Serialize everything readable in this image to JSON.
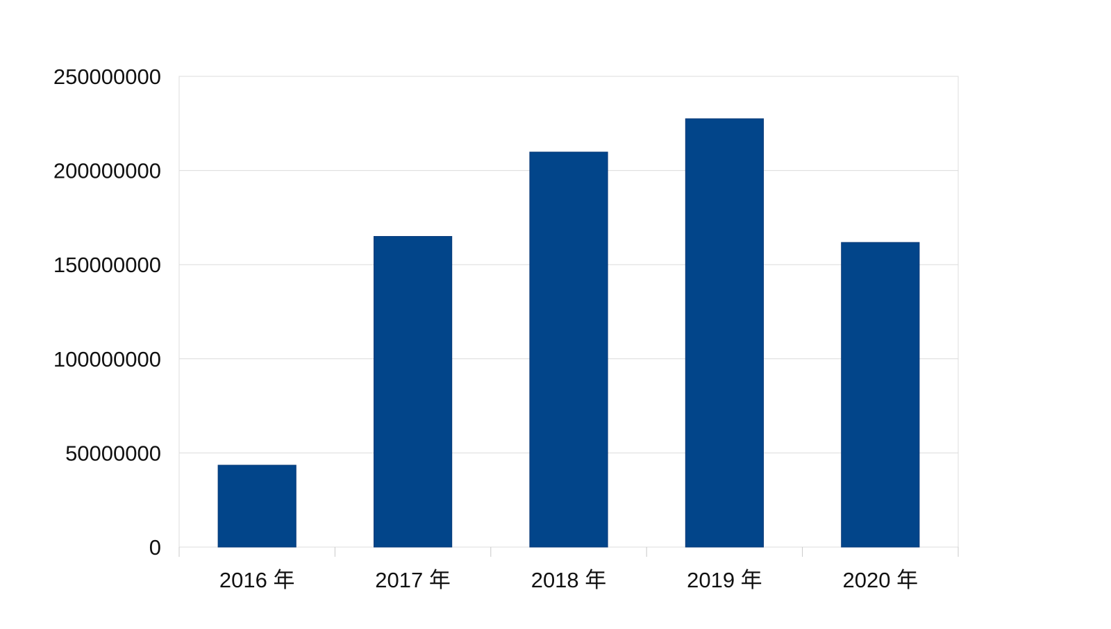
{
  "chart_data": {
    "type": "bar",
    "categories": [
      "2016 年",
      "2017 年",
      "2018 年",
      "2019 年",
      "2020 年"
    ],
    "series": [
      {
        "values": [
          43500000,
          165000000,
          209800000,
          227500000,
          161800000
        ]
      }
    ],
    "ylim": [
      0,
      250000000
    ],
    "yticks": [
      "0",
      "50000000",
      "100000000",
      "150000000",
      "200000000",
      "250000000"
    ],
    "grid": true,
    "legend": "none",
    "colors": {
      "bar": "#02458a"
    }
  }
}
